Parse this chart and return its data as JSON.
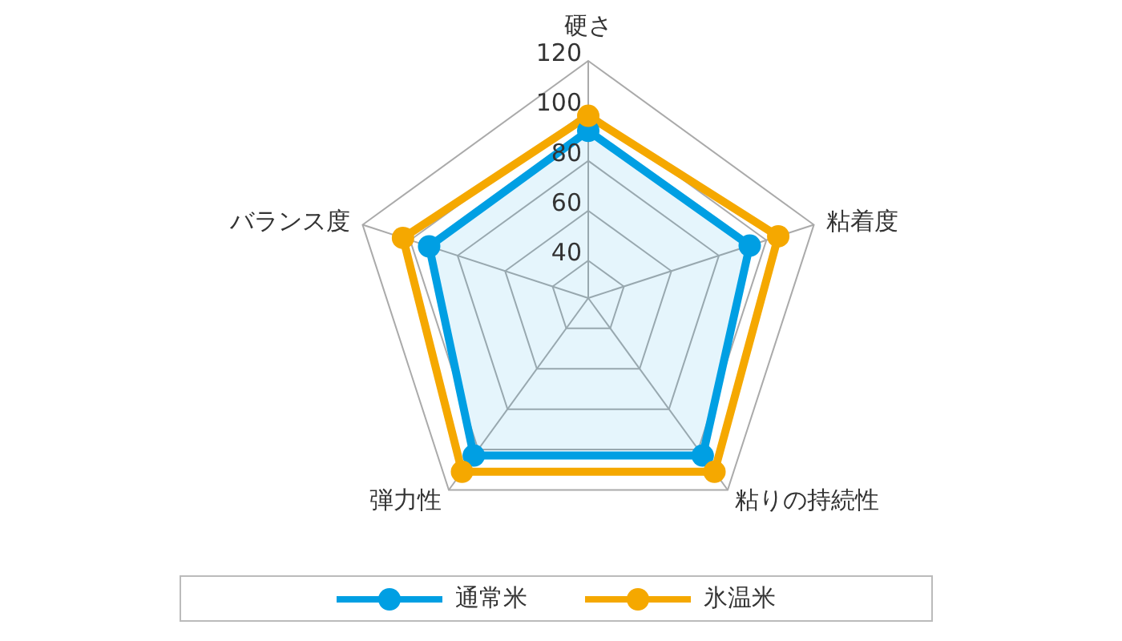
{
  "chart_data": {
    "type": "radar",
    "categories": [
      "硬さ",
      "粘着度",
      "粘りの持続性",
      "弾力性",
      "バランス度"
    ],
    "series": [
      {
        "name": "通常米",
        "color": "#009fe3",
        "values": [
          92,
          93,
          103,
          103,
          92
        ]
      },
      {
        "name": "氷温米",
        "color": "#f5a800",
        "values": [
          98,
          105,
          111,
          111,
          103
        ]
      }
    ],
    "ylim": [
      25,
      120
    ],
    "yticks": [
      40,
      60,
      80,
      100,
      120
    ],
    "grid": true,
    "legend": "bottom",
    "marker": "circle"
  }
}
